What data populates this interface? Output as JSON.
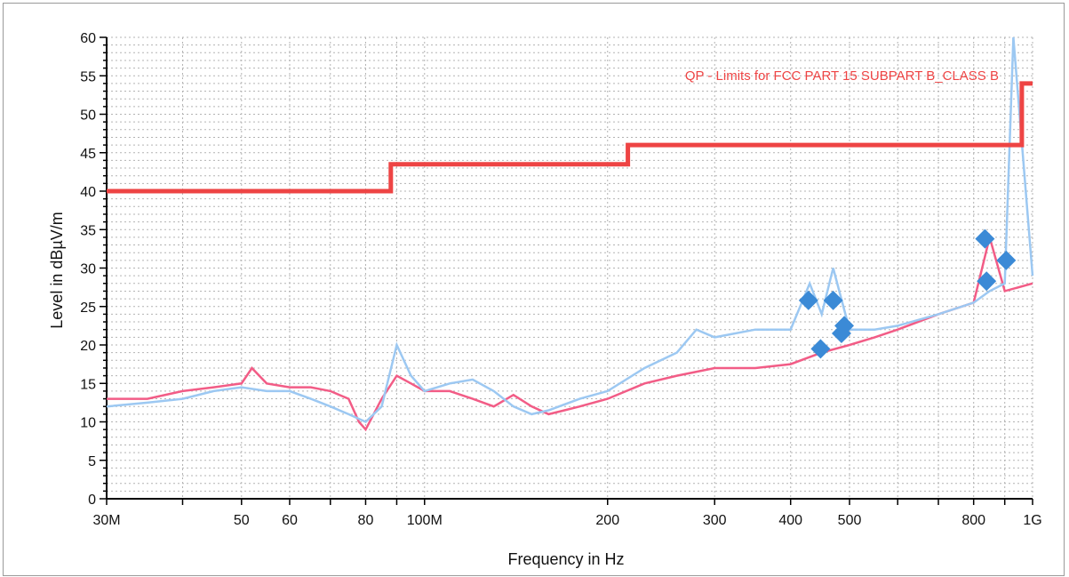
{
  "chart_data": {
    "type": "line",
    "xlabel": "Frequency in Hz",
    "ylabel": "Level in dBµV/m",
    "x_scale": "log",
    "xlim": [
      30000000,
      1000000000
    ],
    "ylim": [
      0,
      60
    ],
    "grid": true,
    "x_tick_values": [
      30000000,
      50000000,
      60000000,
      80000000,
      100000000,
      200000000,
      300000000,
      400000000,
      500000000,
      800000000,
      1000000000
    ],
    "x_tick_labels": [
      "30M",
      "50",
      "60",
      "80",
      "100M",
      "200",
      "300",
      "400",
      "500",
      "800",
      "1G"
    ],
    "y_tick_values": [
      0,
      5,
      10,
      15,
      20,
      25,
      30,
      35,
      40,
      45,
      50,
      55,
      60
    ],
    "limit_annotation": "QP - Limits for FCC PART 15 SUBPART B_CLASS B",
    "colors": {
      "limit": "#ee4444",
      "horizontal": "#f25c86",
      "vertical": "#9cc8f2",
      "markers": "#3b8ad6",
      "grid": "#b3b3b3"
    },
    "series": [
      {
        "type": "step",
        "color_key": "limit",
        "x": [
          30000000,
          88000000,
          88000000,
          216000000,
          216000000,
          960000000,
          960000000,
          1000000000
        ],
        "y": [
          40,
          40,
          43.5,
          43.5,
          46,
          46,
          54,
          54
        ]
      },
      {
        "color_key": "horizontal",
        "x": [
          30000000,
          35000000,
          40000000,
          45000000,
          50000000,
          52000000,
          55000000,
          60000000,
          65000000,
          70000000,
          75000000,
          78000000,
          80000000,
          85000000,
          90000000,
          95000000,
          100000000,
          110000000,
          120000000,
          130000000,
          140000000,
          150000000,
          160000000,
          180000000,
          200000000,
          230000000,
          260000000,
          300000000,
          350000000,
          400000000,
          450000000,
          500000000,
          550000000,
          600000000,
          700000000,
          800000000,
          850000000,
          900000000,
          1000000000
        ],
        "y": [
          13,
          13,
          14,
          14.5,
          15,
          17,
          15,
          14.5,
          14.5,
          14,
          13,
          10,
          9,
          13,
          16,
          15,
          14,
          14,
          13,
          12,
          13.5,
          12,
          11,
          12,
          13,
          15,
          16,
          17,
          17,
          17.5,
          19,
          20,
          21,
          22,
          24,
          25.5,
          34,
          27,
          28
        ]
      },
      {
        "color_key": "vertical",
        "x": [
          30000000,
          35000000,
          40000000,
          45000000,
          50000000,
          55000000,
          60000000,
          65000000,
          70000000,
          75000000,
          80000000,
          85000000,
          90000000,
          95000000,
          100000000,
          110000000,
          120000000,
          130000000,
          140000000,
          150000000,
          160000000,
          180000000,
          200000000,
          230000000,
          260000000,
          280000000,
          300000000,
          350000000,
          400000000,
          430000000,
          450000000,
          470000000,
          500000000,
          550000000,
          600000000,
          700000000,
          800000000,
          850000000,
          900000000,
          930000000,
          1000000000
        ],
        "y": [
          12,
          12.5,
          13,
          14,
          14.5,
          14,
          14,
          13,
          12,
          11,
          10,
          12,
          20,
          16,
          14,
          15,
          15.5,
          14,
          12,
          11,
          11.5,
          13,
          14,
          17,
          19,
          22,
          21,
          22,
          22,
          28,
          24,
          30,
          22,
          22,
          22.5,
          24,
          25.5,
          27,
          28,
          60,
          29
        ]
      }
    ],
    "markers": {
      "x": [
        428000000,
        448000000,
        470000000,
        485000000,
        490000000,
        835000000,
        840000000,
        905000000
      ],
      "y": [
        25.8,
        19.5,
        25.8,
        21.5,
        22.5,
        33.8,
        28.3,
        31
      ]
    }
  }
}
